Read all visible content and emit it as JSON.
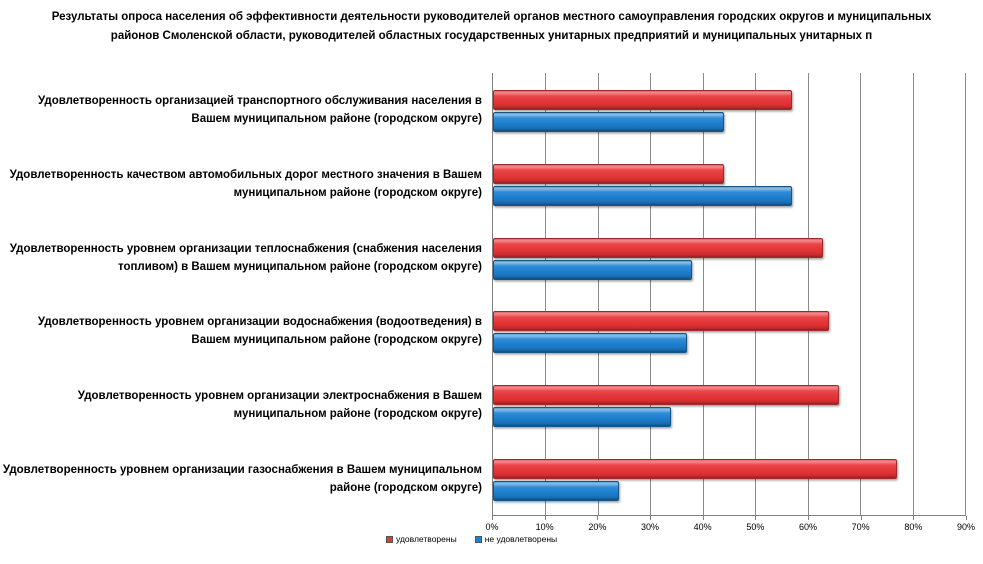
{
  "title": "Результаты опроса населения об эффективности деятельности руководителей органов местного самоуправления городских округов и муниципальных районов Смоленской области, руководителей областных государственных унитарных предприятий и муниципальных унитарных п",
  "chart_data": {
    "type": "bar",
    "orientation": "horizontal",
    "title": "Результаты опроса населения об эффективности деятельности руководителей органов местного самоуправления городских округов и муниципальных районов Смоленской области, руководителей областных государственных унитарных предприятий и муниципальных унитарных п",
    "categories": [
      "Удовлетворенность организацией транспортного обслуживания населения в Вашем муниципальном районе (городском округе)",
      "Удовлетворенность качеством автомобильных дорог местного значения в Вашем муниципальном районе (городском округе)",
      "Удовлетворенность уровнем организации теплоснабжения (снабжения населения топливом) в Вашем муниципальном районе (городском округе)",
      "Удовлетворенность уровнем организации водоснабжения (водоотведения) в Вашем муниципальном районе (городском округе)",
      "Удовлетворенность уровнем организации электроснабжения в Вашем муниципальном районе (городском округе)",
      "Удовлетворенность уровнем организации газоснабжения в Вашем муниципальном районе (городском округе)"
    ],
    "series": [
      {
        "name": "удовлетворены",
        "color": "#E23739",
        "values": [
          57,
          44,
          63,
          64,
          66,
          77
        ]
      },
      {
        "name": "не удовлетворены",
        "color": "#1F80CF",
        "values": [
          44,
          57,
          38,
          37,
          34,
          24
        ]
      }
    ],
    "x_ticks": [
      "0%",
      "10%",
      "20%",
      "30%",
      "40%",
      "50%",
      "60%",
      "70%",
      "80%",
      "90%"
    ],
    "xlim": [
      0,
      90
    ],
    "value_unit": "%",
    "grid": true,
    "legend_position": "bottom"
  },
  "colors": {
    "satisfied": "#E23739",
    "not_satisfied": "#1F80CF",
    "gridline": "#8A8A8A",
    "axis": "#808080",
    "text": "#000000",
    "background": "#FFFFFF"
  }
}
